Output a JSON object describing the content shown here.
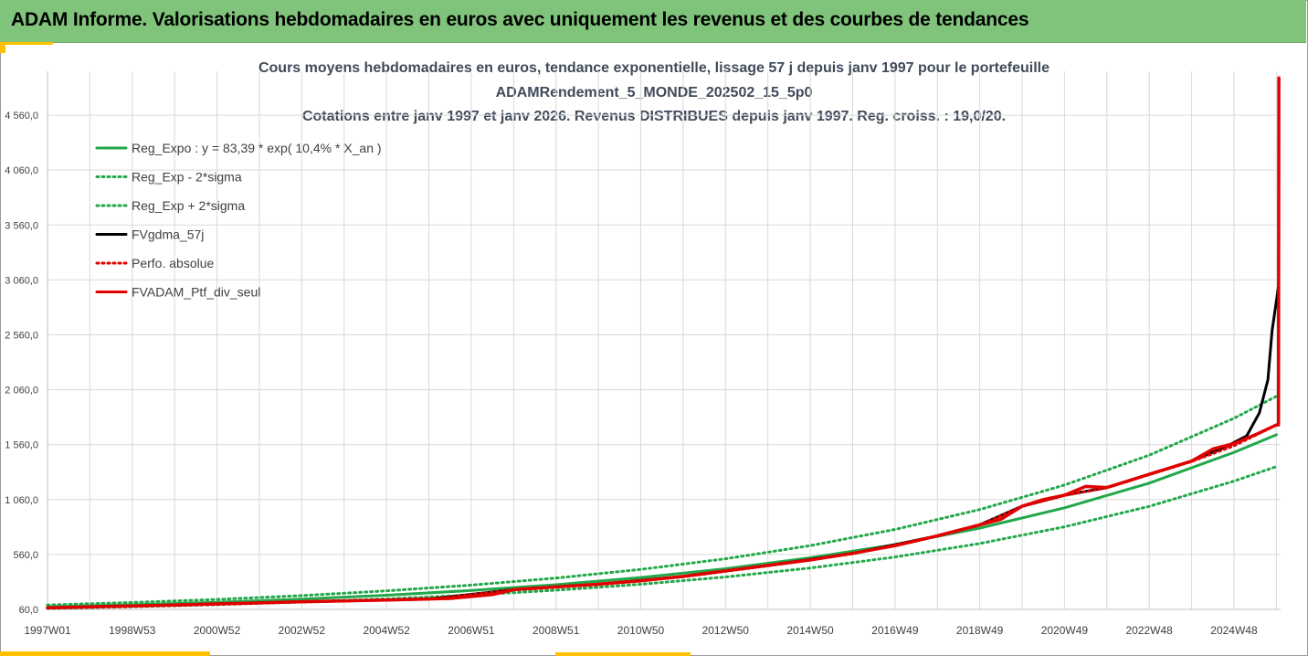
{
  "header": {
    "title": "ADAM Informe. Valorisations hebdomadaires en euros avec uniquement les revenus et des courbes de tendances"
  },
  "colors": {
    "banner": "#7fc47a",
    "accent": "#ffc000",
    "trend": "#22a84a",
    "black_series": "#000000",
    "red_series": "#e00000"
  },
  "chart_data": {
    "type": "line",
    "title_lines": [
      "Cours moyens hebdomadaires  en euros, tendance exponentielle, lissage 57 j depuis janv 1997 pour le portefeuille",
      "ADAMRendement_5_MONDE_202502_15_5p0",
      "Cotations entre janv 1997 et janv 2026. Revenus DISTRIBUES depuis janv 1997. Reg. croiss. : 19,0/20."
    ],
    "x_tick_labels": [
      "1997W01",
      "1998W53",
      "2000W52",
      "2002W52",
      "2004W52",
      "2006W51",
      "2008W51",
      "2010W50",
      "2012W50",
      "2014W50",
      "2016W49",
      "2018W49",
      "2020W49",
      "2022W48",
      "2024W48"
    ],
    "y_tick_labels": [
      "60,0",
      "560,0",
      "1 060,0",
      "1 560,0",
      "2 060,0",
      "2 560,0",
      "3 060,0",
      "3 560,0",
      "4 060,0",
      "4 560,0"
    ],
    "y_ticks": [
      60,
      560,
      1060,
      1560,
      2060,
      2560,
      3060,
      3560,
      4060,
      4560
    ],
    "ylim": [
      60,
      4960
    ],
    "xlim": [
      1997.0,
      2026.1
    ],
    "grid": true,
    "legend_position": "top-left",
    "legend": [
      {
        "label": "Reg_Expo : y = 83,39 * exp( 10,4% *  X_an )",
        "color": "#22a84a",
        "style": "solid"
      },
      {
        "label": "Reg_Exp - 2*sigma",
        "color": "#22a84a",
        "style": "dotted"
      },
      {
        "label": "Reg_Exp + 2*sigma",
        "color": "#22a84a",
        "style": "dotted"
      },
      {
        "label": "FVgdma_57j",
        "color": "#000000",
        "style": "solid"
      },
      {
        "label": "Perfo. absolue",
        "color": "#e00000",
        "style": "dotted"
      },
      {
        "label": "FVADAM_Ptf_div_seul",
        "color": "#e00000",
        "style": "solid"
      }
    ],
    "series": [
      {
        "name": "Reg_Expo : y = 83,39 * exp( 10,4% *  X_an )",
        "x": [
          1997,
          1999,
          2001,
          2003,
          2005,
          2007,
          2009,
          2011,
          2013,
          2015,
          2017,
          2019,
          2021,
          2023,
          2025,
          2026
        ],
        "y": [
          83,
          102,
          125,
          154,
          189,
          232,
          285,
          350,
          430,
          530,
          650,
          800,
          985,
          1210,
          1490,
          1650
        ]
      },
      {
        "name": "Reg_Exp - 2*sigma",
        "x": [
          1997,
          1999,
          2001,
          2003,
          2005,
          2007,
          2009,
          2011,
          2013,
          2015,
          2017,
          2019,
          2021,
          2023,
          2025,
          2026
        ],
        "y": [
          68,
          84,
          103,
          127,
          156,
          191,
          235,
          289,
          355,
          437,
          537,
          660,
          812,
          998,
          1228,
          1360
        ]
      },
      {
        "name": "Reg_Exp + 2*sigma",
        "x": [
          1997,
          1999,
          2001,
          2003,
          2005,
          2007,
          2009,
          2011,
          2013,
          2015,
          2017,
          2019,
          2021,
          2023,
          2025,
          2026
        ],
        "y": [
          100,
          123,
          151,
          186,
          229,
          281,
          345,
          424,
          521,
          641,
          788,
          969,
          1192,
          1464,
          1800,
          2000
        ]
      },
      {
        "name": "FVgdma_57j",
        "x": [
          1997,
          2000,
          2003,
          2006,
          2008,
          2010,
          2012,
          2014,
          2016,
          2018,
          2019,
          2020,
          2021,
          2022,
          2023,
          2024,
          2024.8,
          2025.3,
          2025.6,
          2025.8,
          2025.9,
          2026.05
        ],
        "y": [
          75,
          100,
          130,
          155,
          240,
          290,
          360,
          460,
          570,
          730,
          830,
          1000,
          1100,
          1170,
          1290,
          1410,
          1540,
          1640,
          1850,
          2150,
          2600,
          3000
        ]
      },
      {
        "name": "Perfo. absolue",
        "x": [
          1997,
          2000,
          2003,
          2006,
          2008,
          2010,
          2012,
          2014,
          2016,
          2018,
          2019,
          2020,
          2021,
          2022,
          2023,
          2024,
          2025,
          2026
        ],
        "y": [
          72,
          96,
          127,
          152,
          237,
          287,
          357,
          457,
          567,
          727,
          827,
          997,
          1097,
          1167,
          1287,
          1407,
          1550,
          1740
        ]
      },
      {
        "name": "FVADAM_Ptf_div_seul",
        "x": [
          1997,
          2000,
          2003,
          2005,
          2006.5,
          2007.5,
          2008,
          2009,
          2010,
          2011,
          2012,
          2013,
          2014,
          2015,
          2016,
          2017,
          2018,
          2019,
          2019.5,
          2020,
          2020.5,
          2021,
          2021.5,
          2022,
          2022.5,
          2023,
          2023.5,
          2024,
          2024.5,
          2025,
          2025.5,
          2026,
          2026.05,
          2026.06
        ],
        "y": [
          75,
          100,
          130,
          145,
          160,
          195,
          240,
          265,
          290,
          320,
          360,
          410,
          460,
          510,
          570,
          640,
          730,
          830,
          880,
          1000,
          1060,
          1100,
          1180,
          1170,
          1230,
          1290,
          1350,
          1410,
          1520,
          1570,
          1650,
          1740,
          1740,
          4900
        ]
      }
    ]
  }
}
